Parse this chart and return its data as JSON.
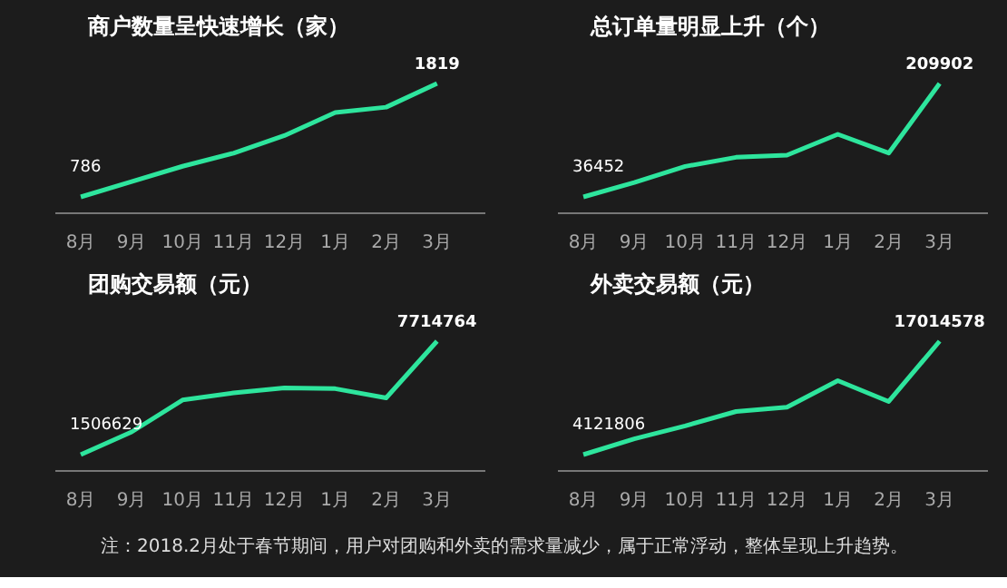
{
  "chart_data": [
    {
      "type": "line",
      "title": "商户数量呈快速增长（家）",
      "categories": [
        "8月",
        "9月",
        "10月",
        "11月",
        "12月",
        "1月",
        "2月",
        "3月"
      ],
      "series": [
        {
          "color": "#2ee59d",
          "values": [
            786,
            926,
            1065,
            1184,
            1344,
            1554,
            1603,
            1819
          ],
          "value_labels": [
            "786",
            null,
            null,
            null,
            null,
            null,
            null,
            "1819"
          ]
        }
      ],
      "grid": false,
      "marker": "none",
      "line_style": "solid"
    },
    {
      "type": "line",
      "title": "总订单量明显上升（个）",
      "categories": [
        "8月",
        "9月",
        "10月",
        "11月",
        "12月",
        "1月",
        "2月",
        "3月"
      ],
      "series": [
        {
          "color": "#2ee59d",
          "values": [
            36452,
            58500,
            83100,
            97000,
            100300,
            132200,
            103500,
            209902
          ],
          "value_labels": [
            "36452",
            null,
            null,
            null,
            null,
            null,
            null,
            "209902"
          ]
        }
      ],
      "grid": false,
      "marker": "none",
      "line_style": "solid"
    },
    {
      "type": "line",
      "title": "团购交易额（元）",
      "categories": [
        "8月",
        "9月",
        "10月",
        "11月",
        "12月",
        "1月",
        "2月",
        "3月"
      ],
      "series": [
        {
          "color": "#2ee59d",
          "values": [
            1506629,
            2748000,
            4494000,
            4882000,
            5154000,
            5115000,
            4611000,
            7714764
          ],
          "value_labels": [
            "1506629",
            null,
            null,
            null,
            null,
            null,
            null,
            "7714764"
          ]
        }
      ],
      "grid": false,
      "marker": "none",
      "line_style": "solid"
    },
    {
      "type": "line",
      "title": "外卖交易额（元）",
      "categories": [
        "8月",
        "9月",
        "10月",
        "11月",
        "12月",
        "1月",
        "2月",
        "3月"
      ],
      "series": [
        {
          "color": "#2ee59d",
          "values": [
            4121806,
            5917000,
            7386000,
            9018000,
            9507000,
            12526000,
            10160000,
            17014578
          ],
          "value_labels": [
            "4121806",
            null,
            null,
            null,
            null,
            null,
            null,
            "17014578"
          ]
        }
      ],
      "grid": false,
      "marker": "none",
      "line_style": "solid",
      "annotations": [
        "注：2018.2月处于春节期间，用户对团购和外卖的需求量减少，属于正常浮动，整体呈现上升趋势。"
      ]
    }
  ]
}
